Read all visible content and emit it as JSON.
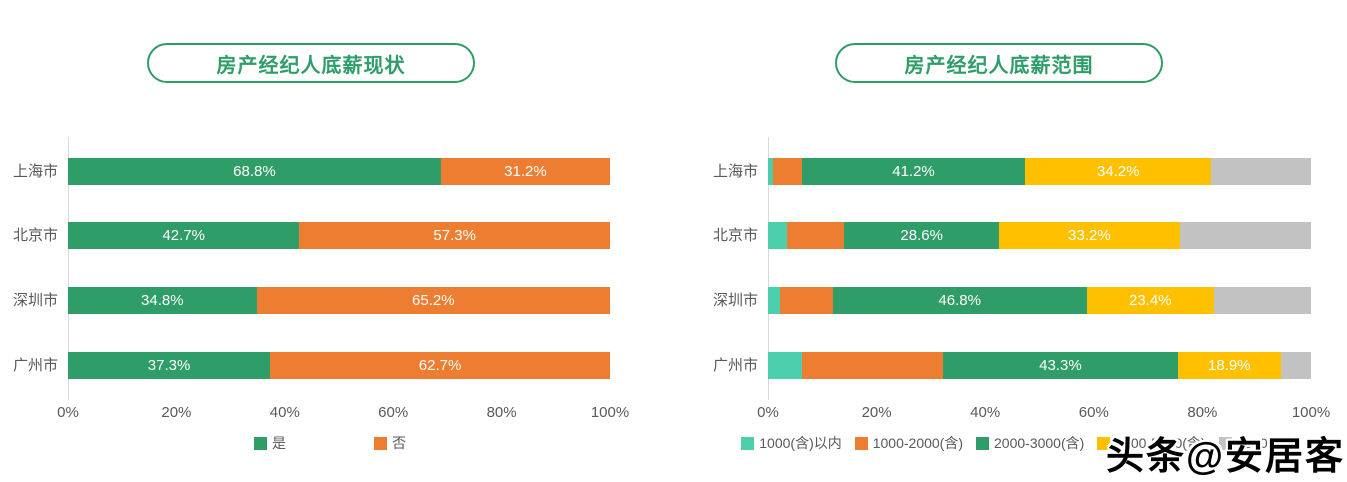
{
  "accent_color": "#2E9D68",
  "watermark": {
    "text": "头条@安居客"
  },
  "chart_data": [
    {
      "type": "bar",
      "orientation": "horizontal-stacked",
      "title": "房产经纪人底薪现状",
      "categories": [
        "上海市",
        "北京市",
        "深圳市",
        "广州市"
      ],
      "series": [
        {
          "name": "是",
          "color": "#2E9D68",
          "show_labels": true,
          "values": [
            68.8,
            42.7,
            34.8,
            37.3
          ]
        },
        {
          "name": "否",
          "color": "#ED7D31",
          "show_labels": true,
          "values": [
            31.2,
            57.3,
            65.2,
            62.7
          ]
        }
      ],
      "x_ticks": [
        "0%",
        "20%",
        "40%",
        "60%",
        "80%",
        "100%"
      ],
      "xlim": [
        0,
        100
      ],
      "value_suffix": "%",
      "legend_position": "bottom",
      "grid": false
    },
    {
      "type": "bar",
      "orientation": "horizontal-stacked",
      "title": "房产经纪人底薪范围",
      "categories": [
        "上海市",
        "北京市",
        "深圳市",
        "广州市"
      ],
      "series": [
        {
          "name": "1000(含)以内",
          "color": "#4BCFAC",
          "show_labels": false,
          "values": [
            1.0,
            3.5,
            2.2,
            6.3
          ]
        },
        {
          "name": "1000-2000(含)",
          "color": "#ED7D31",
          "show_labels": false,
          "values": [
            5.2,
            10.5,
            9.7,
            25.9
          ]
        },
        {
          "name": "2000-3000(含)",
          "color": "#2E9D68",
          "show_labels": true,
          "values": [
            41.2,
            28.6,
            46.8,
            43.3
          ]
        },
        {
          "name": "3000-5000(含)",
          "color": "#FFC000",
          "show_labels": true,
          "values": [
            34.2,
            33.2,
            23.4,
            18.9
          ]
        },
        {
          "name": "5000以上",
          "color": "#C2C2C2",
          "show_labels": false,
          "values": [
            18.4,
            24.2,
            17.9,
            5.6
          ]
        }
      ],
      "x_ticks": [
        "0%",
        "20%",
        "40%",
        "60%",
        "80%",
        "100%"
      ],
      "xlim": [
        0,
        100
      ],
      "value_suffix": "%",
      "legend_position": "bottom",
      "grid": false
    }
  ]
}
